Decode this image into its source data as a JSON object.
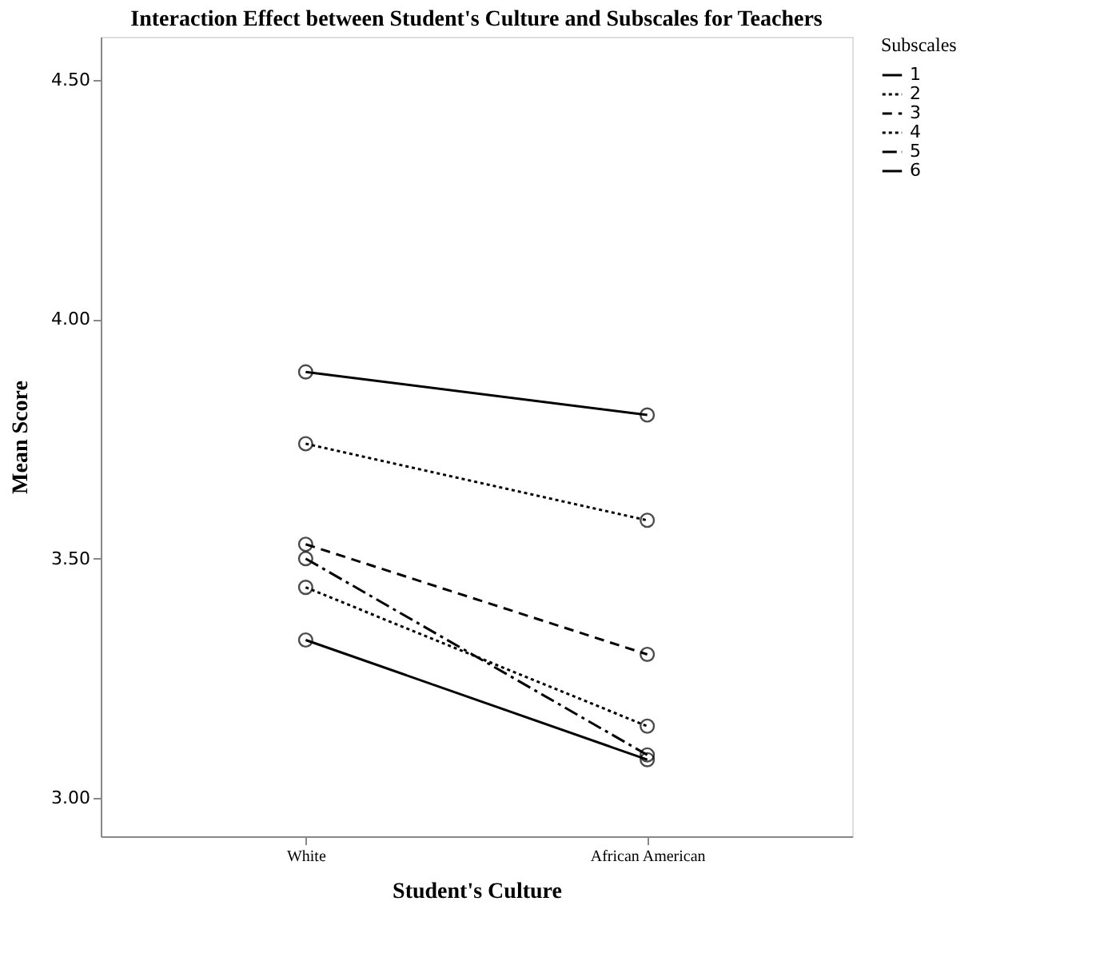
{
  "chart_data": {
    "type": "line",
    "title": "Interaction Effect between Student's Culture and Subscales for Teachers",
    "xlabel": "Student's Culture",
    "ylabel": "Mean Score",
    "legend_title": "Subscales",
    "categories": [
      "White",
      "African American"
    ],
    "series": [
      {
        "name": "1",
        "color": "#000000",
        "line_style": "solid",
        "values": [
          3.89,
          3.8
        ]
      },
      {
        "name": "2",
        "color": "#000000",
        "line_style": "dotted",
        "values": [
          3.74,
          3.58
        ]
      },
      {
        "name": "3",
        "color": "#000000",
        "line_style": "dashed",
        "values": [
          3.53,
          3.3
        ]
      },
      {
        "name": "4",
        "color": "#000000",
        "line_style": "dotted",
        "values": [
          3.44,
          3.15
        ]
      },
      {
        "name": "5",
        "color": "#000000",
        "line_style": "dashdot",
        "values": [
          3.5,
          3.09
        ]
      },
      {
        "name": "6",
        "color": "#000000",
        "line_style": "solid",
        "values": [
          3.33,
          3.08
        ]
      }
    ],
    "ylim": [
      2.92,
      4.59
    ],
    "yticks": [
      {
        "value": 3.0,
        "label": "3.00"
      },
      {
        "value": 3.5,
        "label": "3.50"
      },
      {
        "value": 4.0,
        "label": "4.00"
      },
      {
        "value": 4.5,
        "label": "4.50"
      }
    ],
    "grid": false,
    "legend": "top right",
    "marker": "circle"
  }
}
